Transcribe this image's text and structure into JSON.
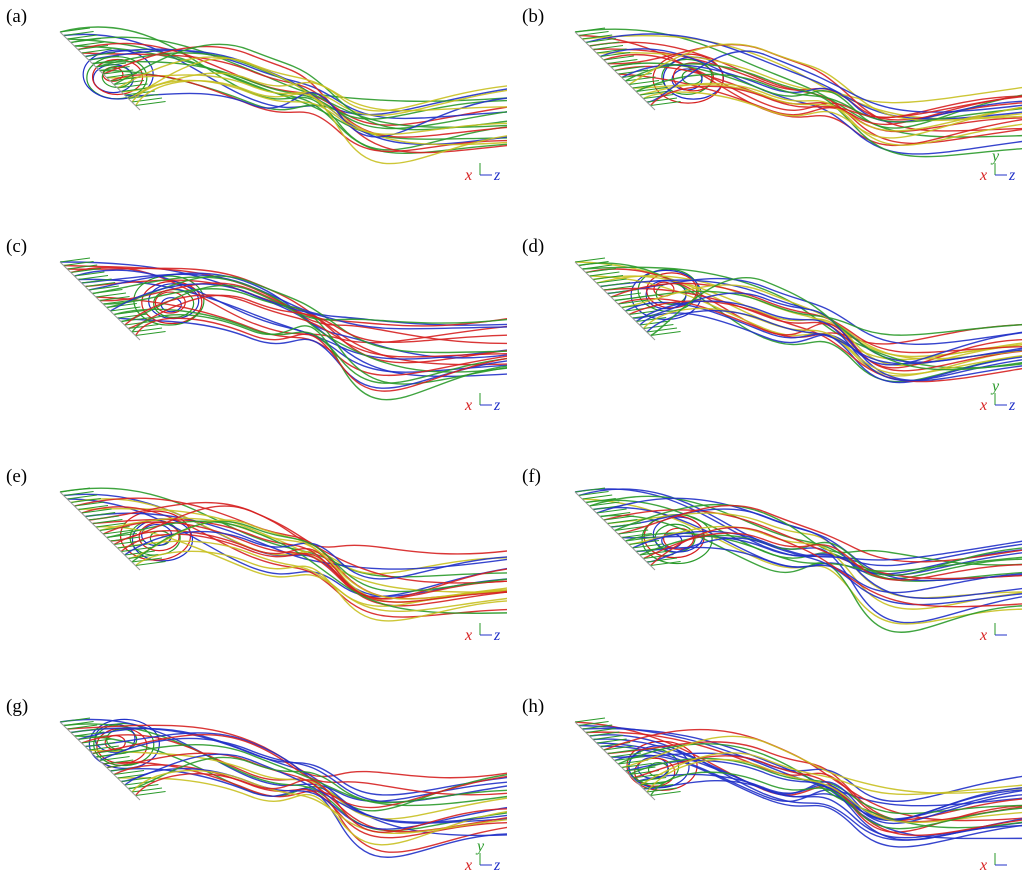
{
  "panels": [
    {
      "label": "(a)",
      "axes": [
        "x",
        "z"
      ]
    },
    {
      "label": "(b)",
      "axes": [
        "y",
        "x",
        "z"
      ]
    },
    {
      "label": "(c)",
      "axes": [
        "x",
        "z"
      ]
    },
    {
      "label": "(d)",
      "axes": [
        "y",
        "x",
        "z"
      ]
    },
    {
      "label": "(e)",
      "axes": [
        "x",
        "z"
      ]
    },
    {
      "label": "(f)",
      "axes": [
        "x"
      ]
    },
    {
      "label": "(g)",
      "axes": [
        "y",
        "x",
        "z"
      ]
    },
    {
      "label": "(h)",
      "axes": [
        "x"
      ]
    }
  ]
}
